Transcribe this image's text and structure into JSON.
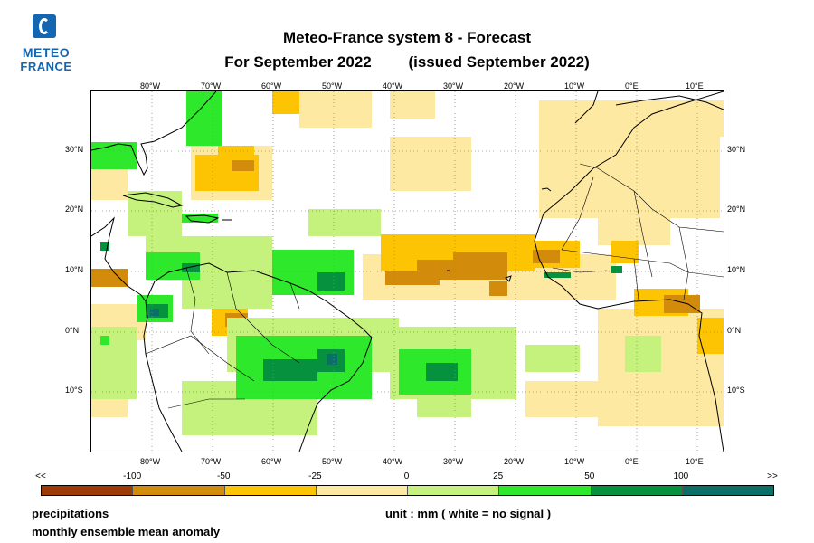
{
  "logo": {
    "line1": "METEO",
    "line2": "FRANCE",
    "brand_color": "#1466b0"
  },
  "title": {
    "line1": "Meteo-France system 8  -  Forecast",
    "for_text": "For September 2022",
    "issued_text": "(issued September 2022)"
  },
  "map": {
    "lon_labels": [
      "80°W",
      "70°W",
      "60°W",
      "50°W",
      "40°W",
      "30°W",
      "20°W",
      "10°W",
      "0°E",
      "10°E"
    ],
    "lat_labels": [
      "30°N",
      "20°N",
      "10°N",
      "0°N",
      "10°S"
    ],
    "gridlines": "dotted"
  },
  "legend": {
    "ticks": [
      "<<",
      "-100",
      "-50",
      "-25",
      "0",
      "25",
      "50",
      "100",
      ">>"
    ],
    "colors": [
      "#9e3a06",
      "#d38b0b",
      "#fdc404",
      "#fee9a3",
      "#c4f27c",
      "#2ee92b",
      "#06913f",
      "#0a6f67"
    ]
  },
  "footer": {
    "variable": "precipitations",
    "description": "monthly ensemble mean anomaly",
    "unit": "unit : mm  ( white = no signal )"
  }
}
